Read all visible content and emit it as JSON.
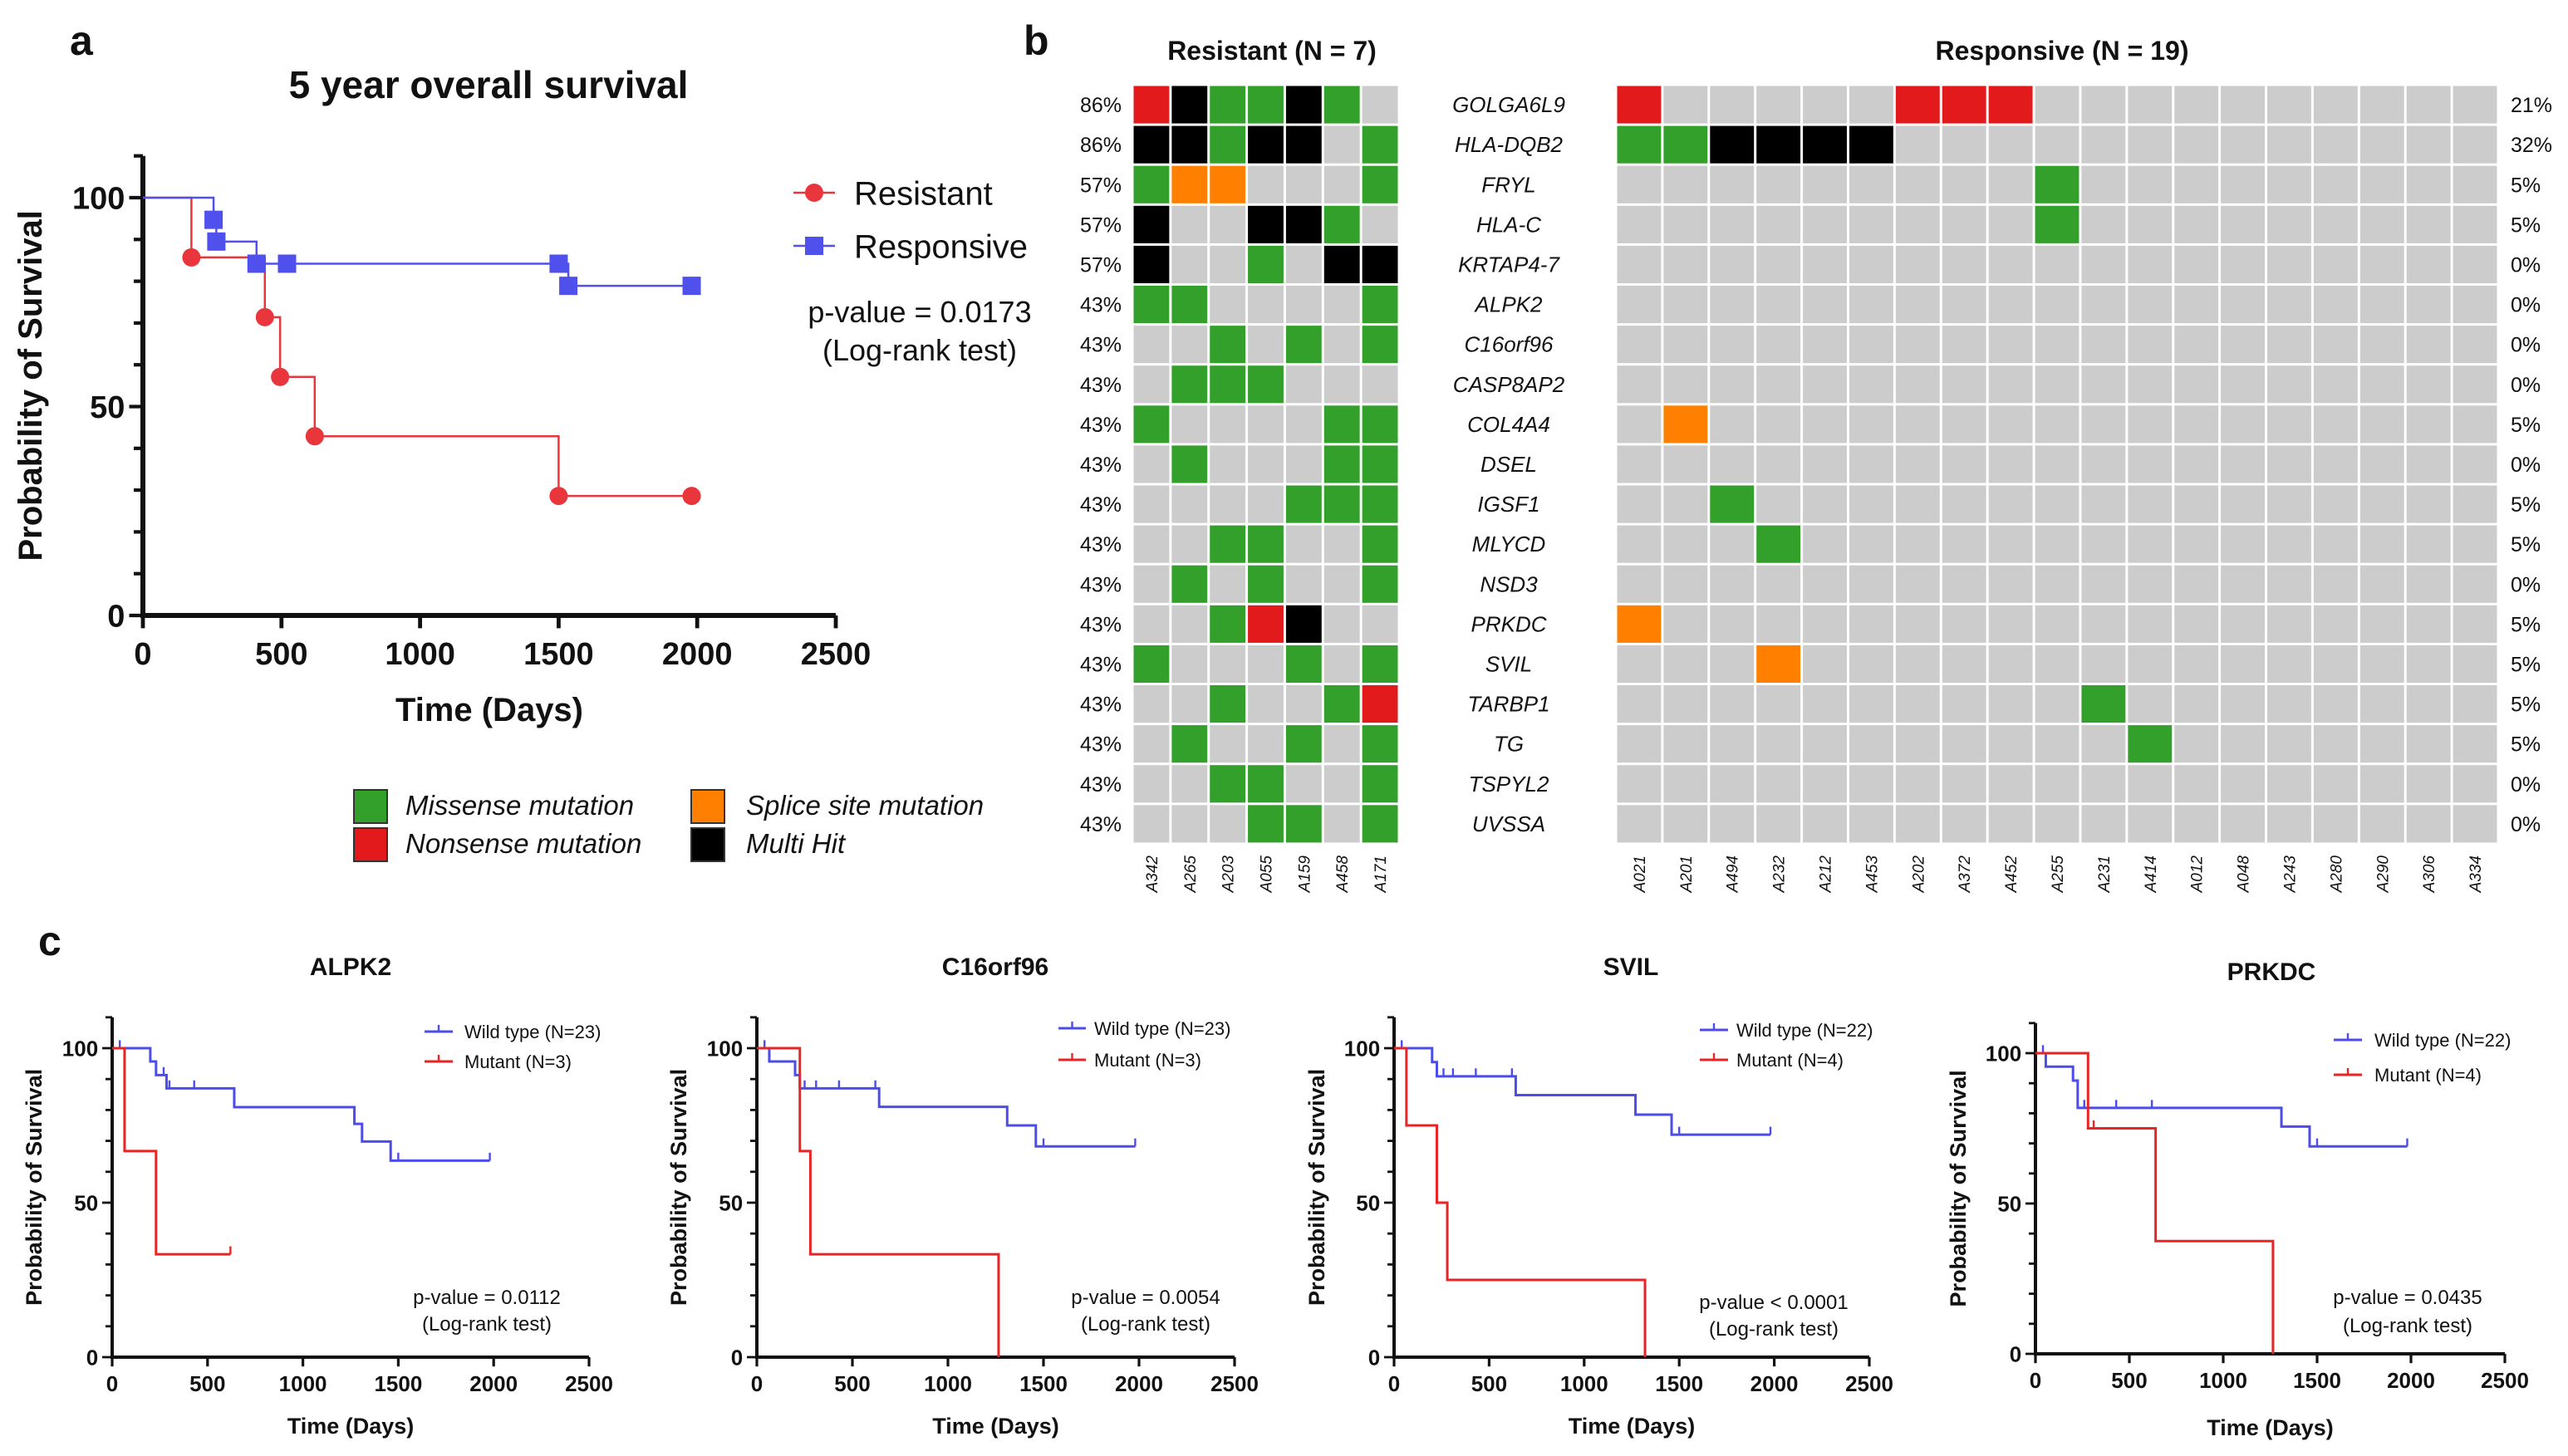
{
  "panel_labels": {
    "a": "a",
    "b": "b",
    "c": "c"
  },
  "mutation_legend": [
    {
      "key": "M",
      "label": "Missense mutation",
      "color": "#33a02c"
    },
    {
      "key": "S",
      "label": "Splice site mutation",
      "color": "#ff7f00"
    },
    {
      "key": "N",
      "label": "Nonsense mutation",
      "color": "#e31a1c"
    },
    {
      "key": "H",
      "label": "Multi Hit",
      "color": "#000000"
    }
  ],
  "colors": {
    "no_mutation": "#cccccc",
    "red": "#e8363c",
    "blue": "#5050ec"
  },
  "chart_data": [
    {
      "type": "line",
      "subtype": "kaplan-meier",
      "title": "5 year overall survival",
      "xlabel": "Time (Days)",
      "ylabel": "Probability of Survival",
      "xlim": [
        0,
        2500
      ],
      "ylim": [
        0,
        110
      ],
      "xticks": [
        0,
        500,
        1000,
        1500,
        2000,
        2500
      ],
      "yticks": [
        0,
        50,
        100
      ],
      "legend": "right",
      "annotation": [
        "p-value = 0.0173",
        "(Log-rank test)"
      ],
      "series": [
        {
          "name": "Resistant",
          "color": "#e8363c",
          "marker": "circle",
          "steps": [
            [
              0,
              100
            ],
            [
              175,
              85.7
            ],
            [
              440,
              71.4
            ],
            [
              495,
              57.1
            ],
            [
              620,
              42.9
            ],
            [
              1500,
              28.6
            ]
          ],
          "end": 1980,
          "markers": [
            [
              175,
              85.7
            ],
            [
              440,
              71.4
            ],
            [
              495,
              57.1
            ],
            [
              620,
              42.9
            ],
            [
              1500,
              28.6
            ],
            [
              1980,
              28.6
            ]
          ]
        },
        {
          "name": "Responsive",
          "color": "#5050ec",
          "marker": "square",
          "steps": [
            [
              0,
              100
            ],
            [
              255,
              94.7
            ],
            [
              265,
              89.5
            ],
            [
              410,
              84.2
            ],
            [
              1535,
              78.9
            ]
          ],
          "end": 1980,
          "markers": [
            [
              255,
              94.7
            ],
            [
              265,
              89.5
            ],
            [
              410,
              84.2
            ],
            [
              520,
              84.2
            ],
            [
              1500,
              84.2
            ],
            [
              1535,
              78.9
            ],
            [
              1980,
              78.9
            ]
          ]
        }
      ]
    },
    {
      "type": "heatmap",
      "subtype": "oncoprint",
      "genes": [
        "GOLGA6L9",
        "HLA-DQB2",
        "FRYL",
        "HLA-C",
        "KRTAP4-7",
        "ALPK2",
        "C16orf96",
        "CASP8AP2",
        "COL4A4",
        "DSEL",
        "IGSF1",
        "MLYCD",
        "NSD3",
        "PRKDC",
        "SVIL",
        "TARBP1",
        "TG",
        "TSPYL2",
        "UVSSA"
      ],
      "groups": [
        {
          "title": "Resistant (N = 7)",
          "samples": [
            "A342",
            "A265",
            "A203",
            "A055",
            "A159",
            "A458",
            "A171"
          ],
          "frequencies": [
            "86%",
            "86%",
            "57%",
            "57%",
            "57%",
            "43%",
            "43%",
            "43%",
            "43%",
            "43%",
            "43%",
            "43%",
            "43%",
            "43%",
            "43%",
            "43%",
            "43%",
            "43%",
            "43%"
          ],
          "matrix": [
            "NHMMHM.",
            "HHMHH.M",
            "MSS...M",
            "H..HHM.",
            "H..M.HH",
            "MM....M",
            "..M.M.M",
            ".MMM...",
            "M....MM",
            ".M...MM",
            "....MMM",
            "..MM..M",
            ".M.M..M",
            "..MNH..",
            "M...M.M",
            "..M..MN",
            ".M..M.M",
            "..MM..M",
            "...MM.M"
          ]
        },
        {
          "title": "Responsive (N = 19)",
          "samples": [
            "A021",
            "A201",
            "A494",
            "A232",
            "A212",
            "A453",
            "A202",
            "A372",
            "A452",
            "A255",
            "A231",
            "A414",
            "A012",
            "A048",
            "A243",
            "A280",
            "A290",
            "A306",
            "A334"
          ],
          "frequencies": [
            "21%",
            "32%",
            "5%",
            "5%",
            "0%",
            "0%",
            "0%",
            "0%",
            "5%",
            "0%",
            "5%",
            "5%",
            "0%",
            "5%",
            "5%",
            "5%",
            "5%",
            "0%",
            "0%"
          ],
          "matrix": [
            "N.....NNN..........",
            "MMHHHH.............",
            ".........M.........",
            ".........M.........",
            "...................",
            "...................",
            "...................",
            "...................",
            ".S.................",
            "...................",
            "..M................",
            "...M...............",
            "...................",
            "S..................",
            "...S...............",
            "..........M........",
            "...........M.......",
            "...................",
            "..................."
          ]
        }
      ]
    },
    {
      "type": "line",
      "subtype": "kaplan-meier",
      "title": "ALPK2",
      "xlabel": "Time (Days)",
      "ylabel": "Probability of Survival",
      "xlim": [
        0,
        2500
      ],
      "ylim": [
        0,
        110
      ],
      "xticks": [
        0,
        500,
        1000,
        1500,
        2000,
        2500
      ],
      "yticks": [
        0,
        50,
        100
      ],
      "legend": "top-right",
      "annotation": [
        "p-value = 0.0112",
        "(Log-rank test)"
      ],
      "series": [
        {
          "name": "Wild type (N=23)",
          "color": "#4c4cea",
          "steps": [
            [
              0,
              100
            ],
            [
              200,
              95.7
            ],
            [
              230,
              91.3
            ],
            [
              285,
              87
            ],
            [
              640,
              80.9
            ],
            [
              1270,
              75.5
            ],
            [
              1310,
              69.8
            ],
            [
              1460,
              63.6
            ]
          ],
          "end": 1980,
          "censored": [
            40,
            270,
            300,
            430,
            1500,
            1980
          ]
        },
        {
          "name": "Mutant (N=3)",
          "color": "#e82424",
          "steps": [
            [
              0,
              100
            ],
            [
              65,
              66.7
            ],
            [
              230,
              33.3
            ]
          ],
          "end": 620,
          "censored": [
            620
          ]
        }
      ]
    },
    {
      "type": "line",
      "subtype": "kaplan-meier",
      "title": "C16orf96",
      "xlabel": "Time (Days)",
      "ylabel": "Probability of Survival",
      "xlim": [
        0,
        2500
      ],
      "ylim": [
        0,
        110
      ],
      "xticks": [
        0,
        500,
        1000,
        1500,
        2000,
        2500
      ],
      "yticks": [
        0,
        50,
        100
      ],
      "legend": "top-right",
      "annotation": [
        "p-value = 0.0054",
        "(Log-rank test)"
      ],
      "series": [
        {
          "name": "Wild type (N=23)",
          "color": "#4c4cea",
          "steps": [
            [
              0,
              100
            ],
            [
              65,
              95.7
            ],
            [
              200,
              91.3
            ],
            [
              225,
              87
            ],
            [
              640,
              81
            ],
            [
              1310,
              75
            ],
            [
              1460,
              68.2
            ]
          ],
          "end": 1980,
          "censored": [
            40,
            250,
            310,
            430,
            620,
            1500,
            1980
          ]
        },
        {
          "name": "Mutant (N=3)",
          "color": "#e82424",
          "steps": [
            [
              0,
              100
            ],
            [
              225,
              66.7
            ],
            [
              280,
              33.3
            ],
            [
              1265,
              0
            ]
          ],
          "end": 1265,
          "censored": []
        }
      ]
    },
    {
      "type": "line",
      "subtype": "kaplan-meier",
      "title": "SVIL",
      "xlabel": "Time (Days)",
      "ylabel": "Probability of Survival",
      "xlim": [
        0,
        2500
      ],
      "ylim": [
        0,
        110
      ],
      "xticks": [
        0,
        500,
        1000,
        1500,
        2000,
        2500
      ],
      "yticks": [
        0,
        50,
        100
      ],
      "legend": "top-right",
      "annotation": [
        "p-value < 0.0001",
        "(Log-rank test)"
      ],
      "series": [
        {
          "name": "Wild type (N=22)",
          "color": "#4c4cea",
          "steps": [
            [
              0,
              100
            ],
            [
              200,
              95.5
            ],
            [
              225,
              90.9
            ],
            [
              640,
              84.8
            ],
            [
              1270,
              78.5
            ],
            [
              1460,
              72
            ]
          ],
          "end": 1980,
          "censored": [
            40,
            260,
            310,
            430,
            620,
            1500,
            1980
          ]
        },
        {
          "name": "Mutant (N=4)",
          "color": "#e82424",
          "steps": [
            [
              0,
              100
            ],
            [
              65,
              75
            ],
            [
              225,
              50
            ],
            [
              280,
              25
            ],
            [
              1320,
              0
            ]
          ],
          "end": 1320,
          "censored": []
        }
      ]
    },
    {
      "type": "line",
      "subtype": "kaplan-meier",
      "title": "PRKDC",
      "xlabel": "Time (Days)",
      "ylabel": "Probability of Survival",
      "xlim": [
        0,
        2500
      ],
      "ylim": [
        0,
        110
      ],
      "xticks": [
        0,
        500,
        1000,
        1500,
        2000,
        2500
      ],
      "yticks": [
        0,
        50,
        100
      ],
      "legend": "top-right",
      "annotation": [
        "p-value = 0.0435",
        "(Log-rank test)"
      ],
      "series": [
        {
          "name": "Wild type (N=22)",
          "color": "#4c4cea",
          "steps": [
            [
              0,
              100
            ],
            [
              55,
              95.5
            ],
            [
              200,
              90.9
            ],
            [
              225,
              81.8
            ],
            [
              1310,
              75.6
            ],
            [
              1460,
              69
            ]
          ],
          "end": 1980,
          "censored": [
            40,
            260,
            430,
            620,
            1500,
            1980
          ]
        },
        {
          "name": "Mutant (N=4)",
          "color": "#e82424",
          "steps": [
            [
              0,
              100
            ],
            [
              280,
              75
            ],
            [
              640,
              37.5
            ],
            [
              1265,
              0
            ]
          ],
          "end": 1265,
          "censored": [
            310
          ]
        }
      ]
    }
  ]
}
